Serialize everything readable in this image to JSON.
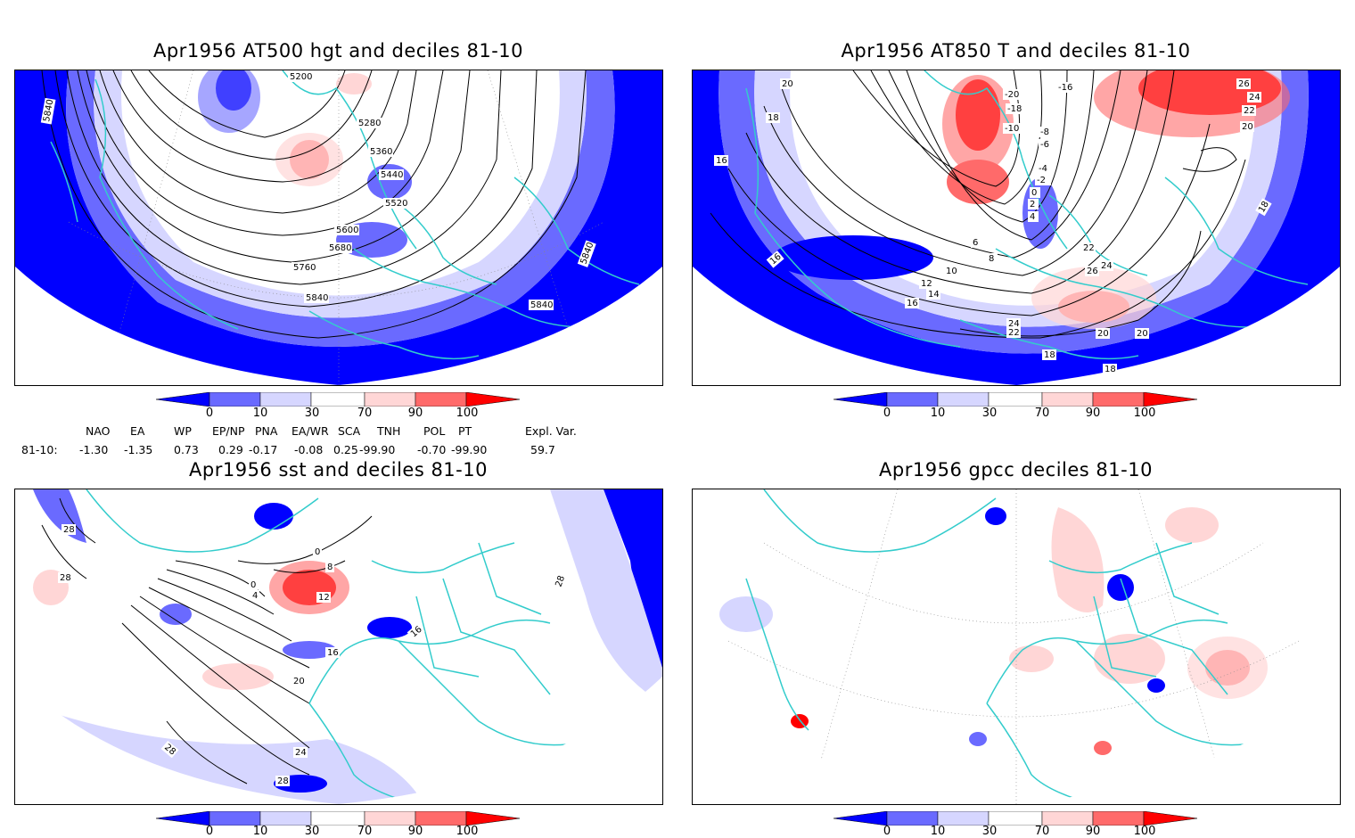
{
  "panels": {
    "top_left": {
      "title": "Apr1956 AT500 hgt and deciles 81-10",
      "contour_labels": [
        "5200",
        "5280",
        "5360",
        "5440",
        "5520",
        "5600",
        "5680",
        "5760",
        "5840",
        "5840",
        "5840",
        "5840"
      ]
    },
    "top_right": {
      "title": "Apr1956 AT850 T and deciles 81-10",
      "contour_labels": [
        "20",
        "18",
        "16",
        "16",
        "-20",
        "-18",
        "-16",
        "-10",
        "-8",
        "-6",
        "-4",
        "-2",
        "0",
        "2",
        "4",
        "6",
        "8",
        "10",
        "12",
        "14",
        "16",
        "18",
        "18",
        "18",
        "20",
        "20",
        "20",
        "22",
        "22",
        "24",
        "24",
        "26",
        "26",
        "22",
        "24"
      ]
    },
    "bottom_left": {
      "title": "Apr1956 sst and deciles 81-10",
      "contour_labels": [
        "28",
        "28",
        "0",
        "0",
        "4",
        "8",
        "12",
        "16",
        "16",
        "20",
        "24",
        "28",
        "28",
        "28"
      ]
    },
    "bottom_right": {
      "title": "Apr1956 gpcc deciles 81-10"
    }
  },
  "colorbar": {
    "ticks": [
      "0",
      "10",
      "30",
      "70",
      "90",
      "100"
    ],
    "colors": [
      "#0000ff",
      "#6a6aff",
      "#d6d6ff",
      "#ffffff",
      "#ffd6d6",
      "#ff6a6a",
      "#ff0000"
    ]
  },
  "indices": {
    "headers": [
      "NAO",
      "EA",
      "WP",
      "EP/NP",
      "PNA",
      "EA/WR",
      "SCA",
      "TNH",
      "POL",
      "PT",
      "Expl. Var."
    ],
    "row_label": "81-10:",
    "values": [
      "-1.30",
      "-1.35",
      "0.73",
      "0.29",
      "-0.17",
      "-0.08",
      "0.25",
      "-99.90",
      "-0.70",
      "-99.90",
      "59.7"
    ]
  },
  "map_colors": {
    "coast": "#33cccc",
    "contour": "#000000",
    "grid": "#888888"
  }
}
